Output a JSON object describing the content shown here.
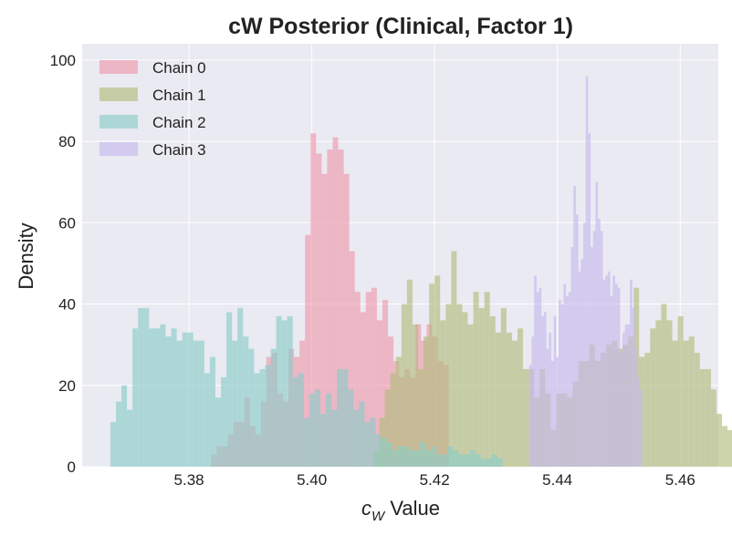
{
  "chart_data": {
    "type": "histogram",
    "title": "cW Posterior (Clinical, Factor 1)",
    "xlabel_symbol": "c",
    "xlabel_subscript": "W",
    "xlabel_suffix": " Value",
    "ylabel": "Density",
    "xlim": [
      5.3626,
      5.4662
    ],
    "ylim": [
      0,
      104
    ],
    "xticks": [
      5.38,
      5.4,
      5.42,
      5.44,
      5.46
    ],
    "xtick_labels": [
      "5.38",
      "5.40",
      "5.42",
      "5.44",
      "5.46"
    ],
    "yticks": [
      0,
      20,
      40,
      60,
      80,
      100
    ],
    "ytick_labels": [
      "0",
      "20",
      "40",
      "60",
      "80",
      "100"
    ],
    "grid": true,
    "legend_position": "upper-left",
    "series": [
      {
        "name": "Chain 0",
        "color": "#ee99ac",
        "bin_start": 5.3836,
        "bin_width": 0.0009,
        "values": [
          3,
          5,
          5,
          8,
          11,
          11,
          17,
          10,
          8,
          16,
          27,
          28,
          18,
          16,
          29,
          27,
          31,
          57,
          82,
          77,
          72,
          78,
          81,
          78,
          72,
          53,
          43,
          38,
          43,
          44,
          36,
          41,
          32,
          26,
          22,
          24,
          22,
          35,
          31,
          35,
          32,
          26,
          25
        ]
      },
      {
        "name": "Chain 1",
        "color": "#b2bd7d",
        "bin_start": 5.4101,
        "bin_width": 0.0009,
        "values": [
          4,
          12,
          19,
          23,
          27,
          40,
          46,
          35,
          24,
          32,
          45,
          47,
          36,
          40,
          53,
          40,
          38,
          35,
          43,
          39,
          43,
          37,
          33,
          39,
          33,
          31,
          34,
          24,
          24,
          17,
          24,
          18,
          9,
          18,
          18,
          17,
          21,
          26,
          26,
          30,
          26,
          28,
          30,
          31,
          29,
          30,
          32,
          44,
          27,
          28,
          34,
          36,
          40,
          36,
          31,
          37,
          31,
          32,
          28,
          24,
          24,
          19,
          13,
          10,
          9,
          8,
          5,
          4,
          5,
          3,
          3
        ]
      },
      {
        "name": "Chain 2",
        "color": "#8ccdc8",
        "bin_start": 5.3672,
        "bin_width": 0.0009,
        "values": [
          11,
          16,
          20,
          14,
          34,
          39,
          39,
          34,
          34,
          35,
          32,
          34,
          31,
          33,
          33,
          31,
          31,
          23,
          27,
          17,
          22,
          38,
          31,
          39,
          32,
          29,
          23,
          24,
          25,
          29,
          37,
          36,
          37,
          22,
          23,
          12,
          18,
          19,
          13,
          18,
          14,
          24,
          24,
          19,
          14,
          16,
          11,
          12,
          8,
          7,
          6,
          4,
          5,
          5,
          4,
          4,
          6,
          4,
          5,
          3,
          3,
          5,
          4,
          3,
          3,
          4,
          3,
          2,
          2,
          3,
          2
        ]
      },
      {
        "name": "Chain 3",
        "color": "#c6b8ec",
        "bin_start": 5.4354,
        "bin_width": 0.0004,
        "values": [
          25,
          32,
          47,
          43,
          44,
          37,
          38,
          29,
          33,
          26,
          37,
          27,
          41,
          40,
          45,
          42,
          43,
          54,
          69,
          62,
          48,
          51,
          60,
          96,
          82,
          54,
          58,
          70,
          61,
          58,
          46,
          47,
          48,
          42,
          47,
          45,
          44,
          28,
          33,
          35,
          35,
          46,
          39,
          29,
          22,
          19
        ]
      }
    ]
  }
}
